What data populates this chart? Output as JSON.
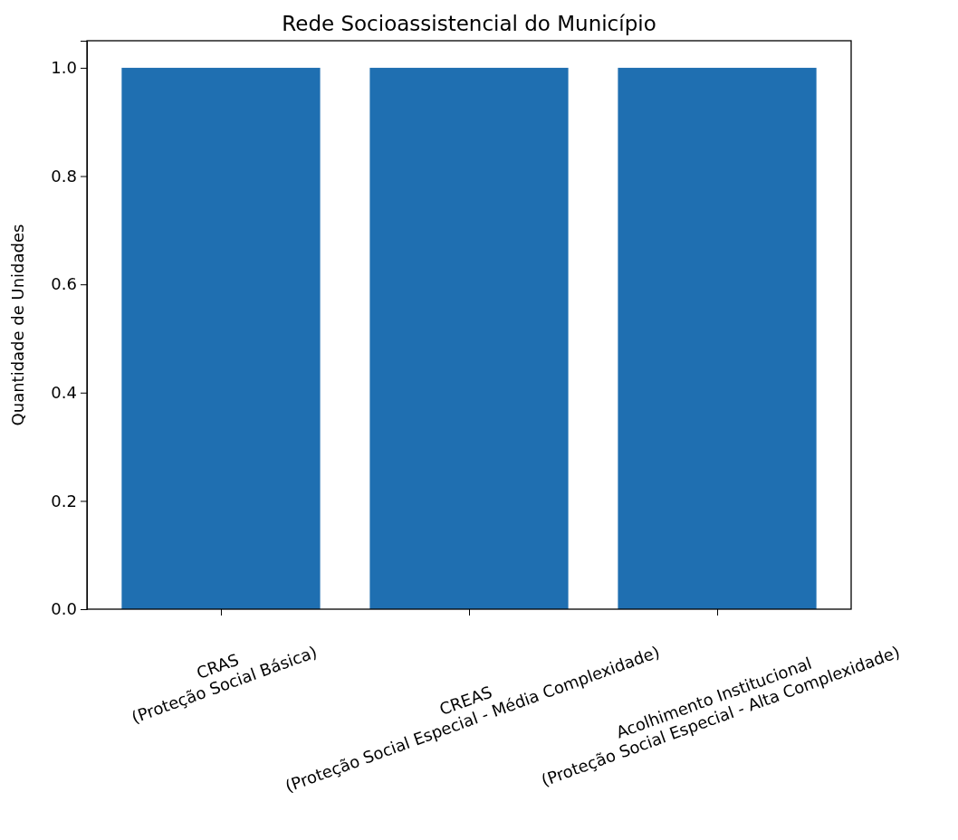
{
  "chart_data": {
    "type": "bar",
    "title": "Rede Socioassistencial do Município",
    "ylabel": "Quantidade de Unidades",
    "categories": [
      "CRAS\n(Proteção Social Básica)",
      "CREAS\n(Proteção Social Especial - Média Complexidade)",
      "Acolhimento Institucional\n(Proteção Social Especial - Alta Complexidade)"
    ],
    "values": [
      1,
      1,
      1
    ],
    "color": "#1f6fb1",
    "ylim": [
      0,
      1.05
    ],
    "yticks": [
      {
        "value": 0,
        "label": "0.0"
      },
      {
        "value": 0.2,
        "label": "0.2"
      },
      {
        "value": 0.4,
        "label": "0.4"
      },
      {
        "value": 0.6,
        "label": "0.6"
      },
      {
        "value": 0.8,
        "label": "0.8"
      },
      {
        "value": 1,
        "label": "1.0"
      }
    ]
  }
}
